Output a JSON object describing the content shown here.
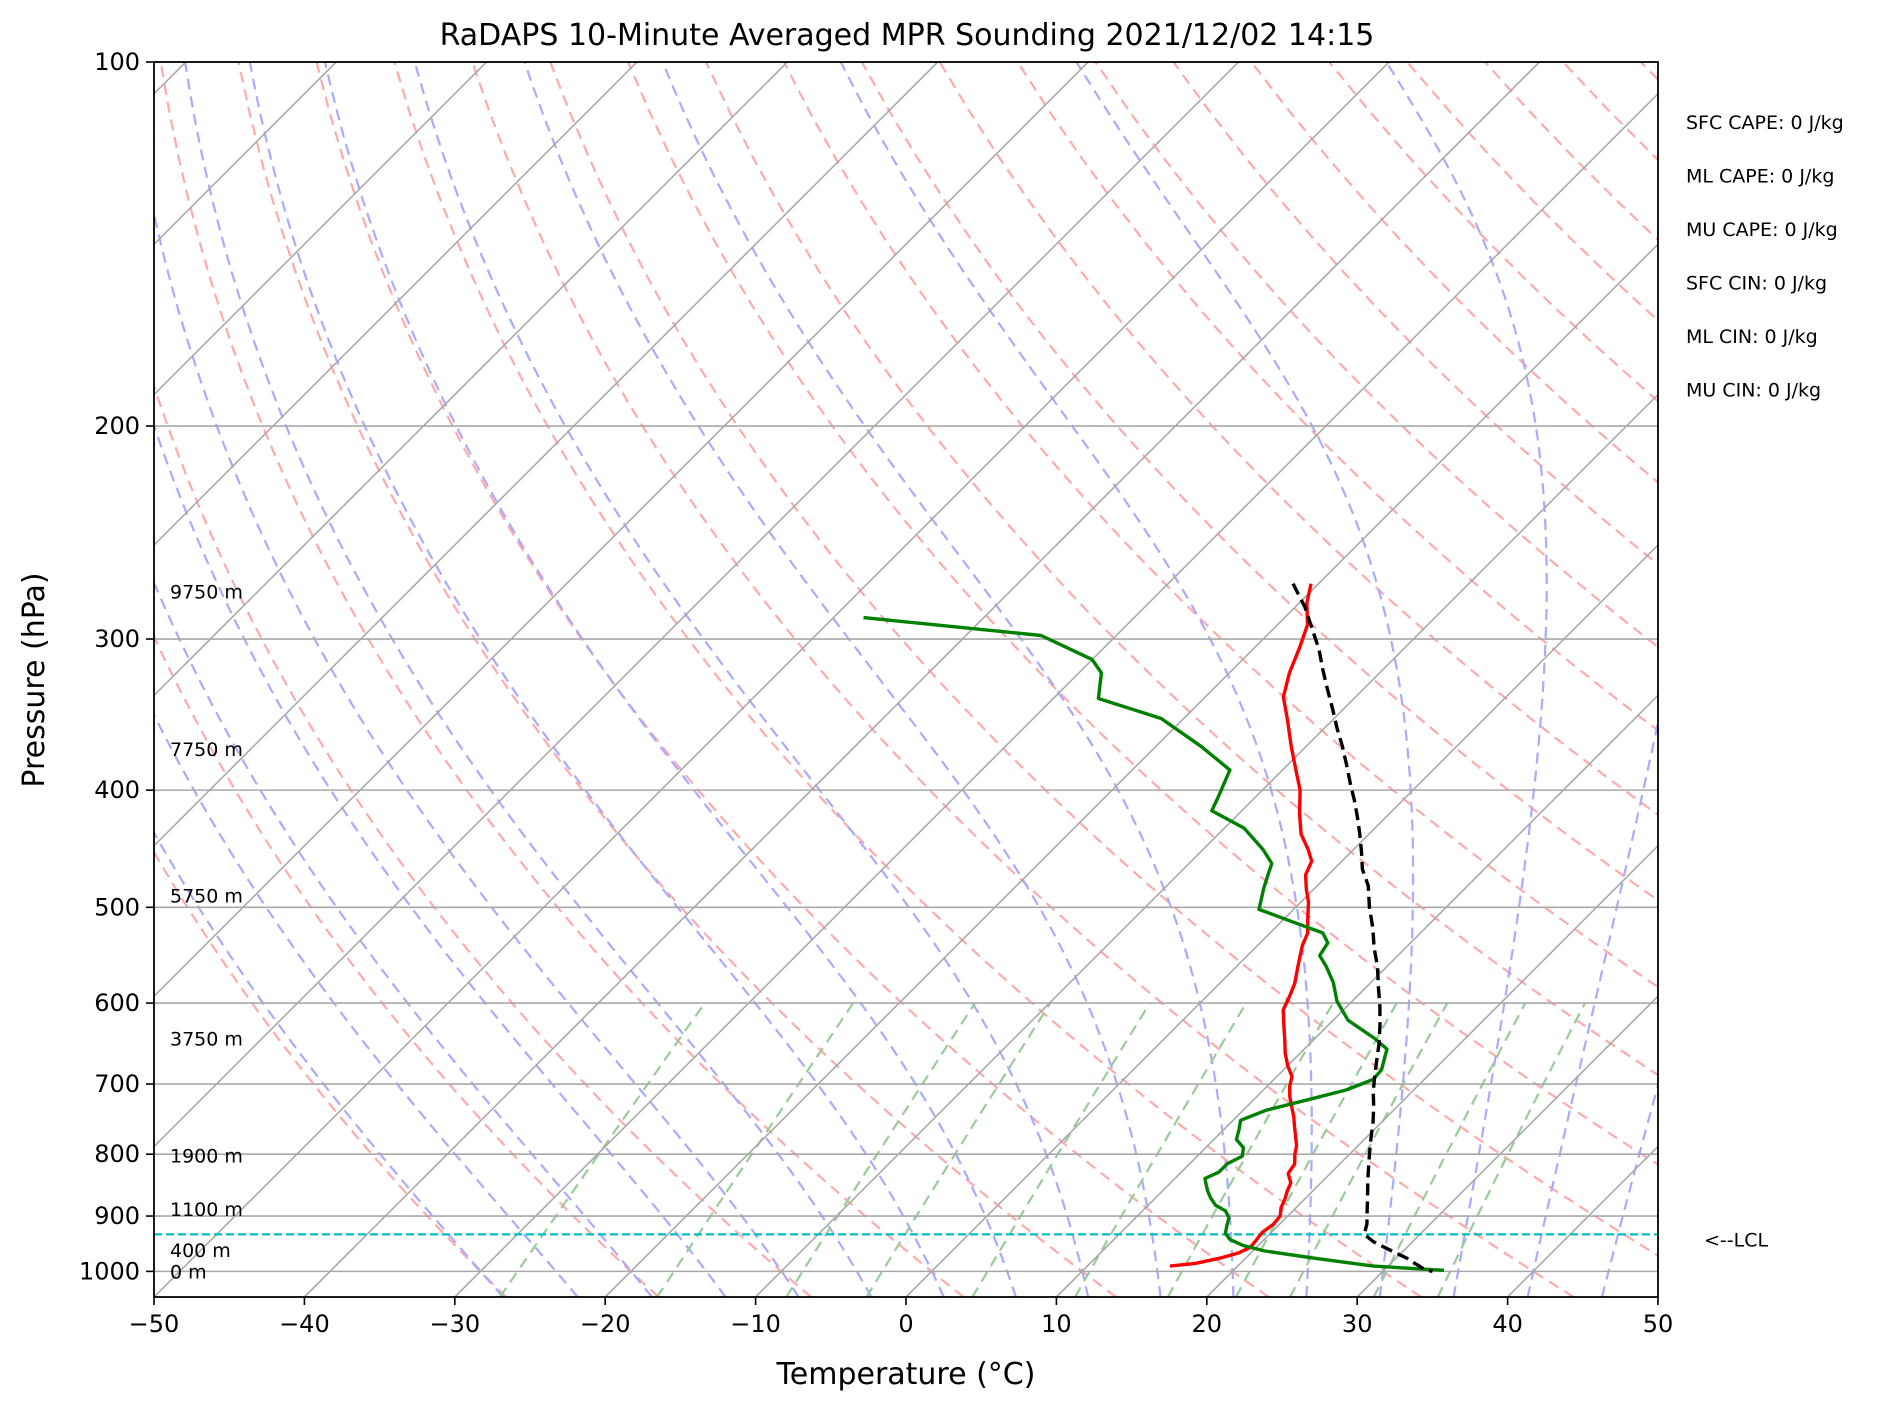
{
  "chart_data": {
    "type": "line",
    "subtype": "skew-T log-P sounding",
    "title": "RaDAPS 10-Minute Averaged MPR Sounding 2021/12/02 14:15",
    "xlabel": "Temperature (°C)",
    "ylabel": "Pressure (hPa)",
    "xlim": [
      -50,
      50
    ],
    "ylim": [
      1050,
      100
    ],
    "y_scale": "log",
    "x_ticks": [
      -50,
      -40,
      -30,
      -20,
      -10,
      0,
      10,
      20,
      30,
      40,
      50
    ],
    "x_tick_labels": [
      "−50",
      "−40",
      "−30",
      "−20",
      "−10",
      "0",
      "10",
      "20",
      "30",
      "40",
      "50"
    ],
    "y_ticks": [
      100,
      200,
      300,
      400,
      500,
      600,
      700,
      800,
      900,
      1000
    ],
    "y_tick_labels": [
      "100",
      "200",
      "300",
      "400",
      "500",
      "600",
      "700",
      "800",
      "900",
      "1000"
    ],
    "grid": true,
    "skew_degrees": 45,
    "series": [
      {
        "key": "temperature",
        "color": "#ff0000",
        "points": [
          [
            -20.5,
            270
          ],
          [
            -19.5,
            280
          ],
          [
            -18,
            292
          ],
          [
            -17,
            305
          ],
          [
            -16,
            320
          ],
          [
            -14.8,
            335
          ],
          [
            -13,
            350
          ],
          [
            -11,
            368
          ],
          [
            -9,
            386
          ],
          [
            -7.5,
            400
          ],
          [
            -6,
            418
          ],
          [
            -4.5,
            435
          ],
          [
            -3,
            448
          ],
          [
            -2,
            458
          ],
          [
            -1.5,
            470
          ],
          [
            -0.5,
            483
          ],
          [
            0.5,
            495
          ],
          [
            1.5,
            510
          ],
          [
            2.5,
            525
          ],
          [
            3,
            538
          ],
          [
            4,
            558
          ],
          [
            5,
            578
          ],
          [
            5.5,
            592
          ],
          [
            6,
            608
          ],
          [
            7,
            625
          ],
          [
            8,
            642
          ],
          [
            9,
            660
          ],
          [
            10,
            676
          ],
          [
            11,
            690
          ],
          [
            11.5,
            703
          ],
          [
            12.2,
            717
          ],
          [
            13,
            731
          ],
          [
            13.8,
            745
          ],
          [
            14.5,
            759
          ],
          [
            15.2,
            773
          ],
          [
            15.9,
            787
          ],
          [
            16.4,
            801
          ],
          [
            17,
            815
          ],
          [
            17.2,
            830
          ],
          [
            18,
            845
          ],
          [
            18.3,
            858
          ],
          [
            18.7,
            872
          ],
          [
            19,
            886
          ],
          [
            19.5,
            900
          ],
          [
            19.6,
            914
          ],
          [
            19.4,
            928
          ],
          [
            19.5,
            942
          ],
          [
            19.6,
            955
          ],
          [
            19.2,
            965
          ],
          [
            18.3,
            975
          ],
          [
            17,
            985
          ],
          [
            15.5,
            990
          ]
        ]
      },
      {
        "key": "dewpoint",
        "color": "#008000",
        "points": [
          [
            -48,
            288
          ],
          [
            -35,
            298
          ],
          [
            -30,
            312
          ],
          [
            -28.5,
            320
          ],
          [
            -27,
            336
          ],
          [
            -21.5,
            349
          ],
          [
            -17,
            368
          ],
          [
            -13.5,
            385
          ],
          [
            -12.5,
            405
          ],
          [
            -12,
            416
          ],
          [
            -8.7,
            430
          ],
          [
            -6,
            448
          ],
          [
            -4.5,
            460
          ],
          [
            -4,
            470
          ],
          [
            -3.4,
            482
          ],
          [
            -2.3,
            502
          ],
          [
            0.5,
            513
          ],
          [
            3.5,
            525
          ],
          [
            4.5,
            535
          ],
          [
            4.8,
            548
          ],
          [
            6,
            560
          ],
          [
            7.5,
            577
          ],
          [
            9,
            598
          ],
          [
            11,
            620
          ],
          [
            14,
            642
          ],
          [
            15.5,
            655
          ],
          [
            16,
            668
          ],
          [
            16.5,
            681
          ],
          [
            16.6,
            694
          ],
          [
            15.5,
            708
          ],
          [
            13.5,
            722
          ],
          [
            11.5,
            736
          ],
          [
            10.5,
            750
          ],
          [
            11,
            763
          ],
          [
            11.5,
            778
          ],
          [
            12.5,
            790
          ],
          [
            13,
            803
          ],
          [
            12.5,
            815
          ],
          [
            12.5,
            828
          ],
          [
            12,
            838
          ],
          [
            12.5,
            848
          ],
          [
            13,
            858
          ],
          [
            13.7,
            870
          ],
          [
            14.5,
            882
          ],
          [
            15.5,
            891
          ],
          [
            16.2,
            903
          ],
          [
            16.6,
            917
          ],
          [
            17,
            930
          ],
          [
            17.7,
            941
          ],
          [
            19,
            952
          ],
          [
            20.8,
            962
          ],
          [
            24.5,
            975
          ],
          [
            29,
            990
          ],
          [
            34,
            998
          ]
        ]
      },
      {
        "key": "parcel",
        "color": "#000000",
        "dashed": true,
        "points": [
          [
            -21.7,
            270
          ],
          [
            -19.4,
            282
          ],
          [
            -17.3,
            295
          ],
          [
            -15.6,
            306
          ],
          [
            -14,
            318
          ],
          [
            -12.4,
            330
          ],
          [
            -10.7,
            343
          ],
          [
            -9.1,
            356
          ],
          [
            -7.6,
            368
          ],
          [
            -6,
            382
          ],
          [
            -4.6,
            395
          ],
          [
            -3.2,
            408
          ],
          [
            -1.9,
            421
          ],
          [
            -0.6,
            435
          ],
          [
            0.7,
            450
          ],
          [
            1.9,
            465
          ],
          [
            3.4,
            480
          ],
          [
            4.9,
            500
          ],
          [
            6.5,
            520
          ],
          [
            7.9,
            540
          ],
          [
            9.4,
            560
          ],
          [
            10.8,
            582
          ],
          [
            12.2,
            604
          ],
          [
            13.4,
            625
          ],
          [
            14.6,
            648
          ],
          [
            15.6,
            670
          ],
          [
            16.5,
            690
          ],
          [
            17.4,
            710
          ],
          [
            18.4,
            730
          ],
          [
            19.4,
            752
          ],
          [
            20.2,
            772
          ],
          [
            21,
            792
          ],
          [
            21.8,
            812
          ],
          [
            22.6,
            832
          ],
          [
            23.4,
            852
          ],
          [
            24.2,
            872
          ],
          [
            25,
            893
          ],
          [
            25.8,
            914
          ],
          [
            26.3,
            932
          ],
          [
            27.4,
            945
          ],
          [
            28.7,
            957
          ],
          [
            29.7,
            966
          ],
          [
            30.7,
            975
          ],
          [
            31.3,
            982
          ],
          [
            32,
            989
          ],
          [
            32.6,
            996
          ],
          [
            33.3,
            1000
          ]
        ]
      }
    ],
    "lcl_pressure": 932,
    "lcl_color": "#00bfbf",
    "lcl_label": "<--LCL",
    "height_labels": [
      {
        "text": "9750 m",
        "p": 274
      },
      {
        "text": "7750 m",
        "p": 370
      },
      {
        "text": "5750 m",
        "p": 489
      },
      {
        "text": "3750 m",
        "p": 642
      },
      {
        "text": "1900 m",
        "p": 802
      },
      {
        "text": "1100 m",
        "p": 888
      },
      {
        "text": "400 m",
        "p": 960
      },
      {
        "text": "0 m",
        "p": 1000
      }
    ],
    "indices": [
      {
        "label": "SFC CAPE",
        "value": "0 J/kg"
      },
      {
        "label": "ML CAPE",
        "value": "0 J/kg"
      },
      {
        "label": "MU CAPE",
        "value": "0 J/kg"
      },
      {
        "label": "SFC CIN",
        "value": "0 J/kg"
      },
      {
        "label": "ML CIN",
        "value": "0 J/kg"
      },
      {
        "label": "MU CIN",
        "value": "0 J/kg"
      }
    ],
    "background_lines": {
      "isotherm_color": "#a9a9a9",
      "dry_adiabat_color": "#ffaaaa",
      "moist_adiabat_color": "#aaaaff",
      "mixing_ratio_color": "#99cc99",
      "mixing_ratio_top_hpa": 600
    }
  }
}
